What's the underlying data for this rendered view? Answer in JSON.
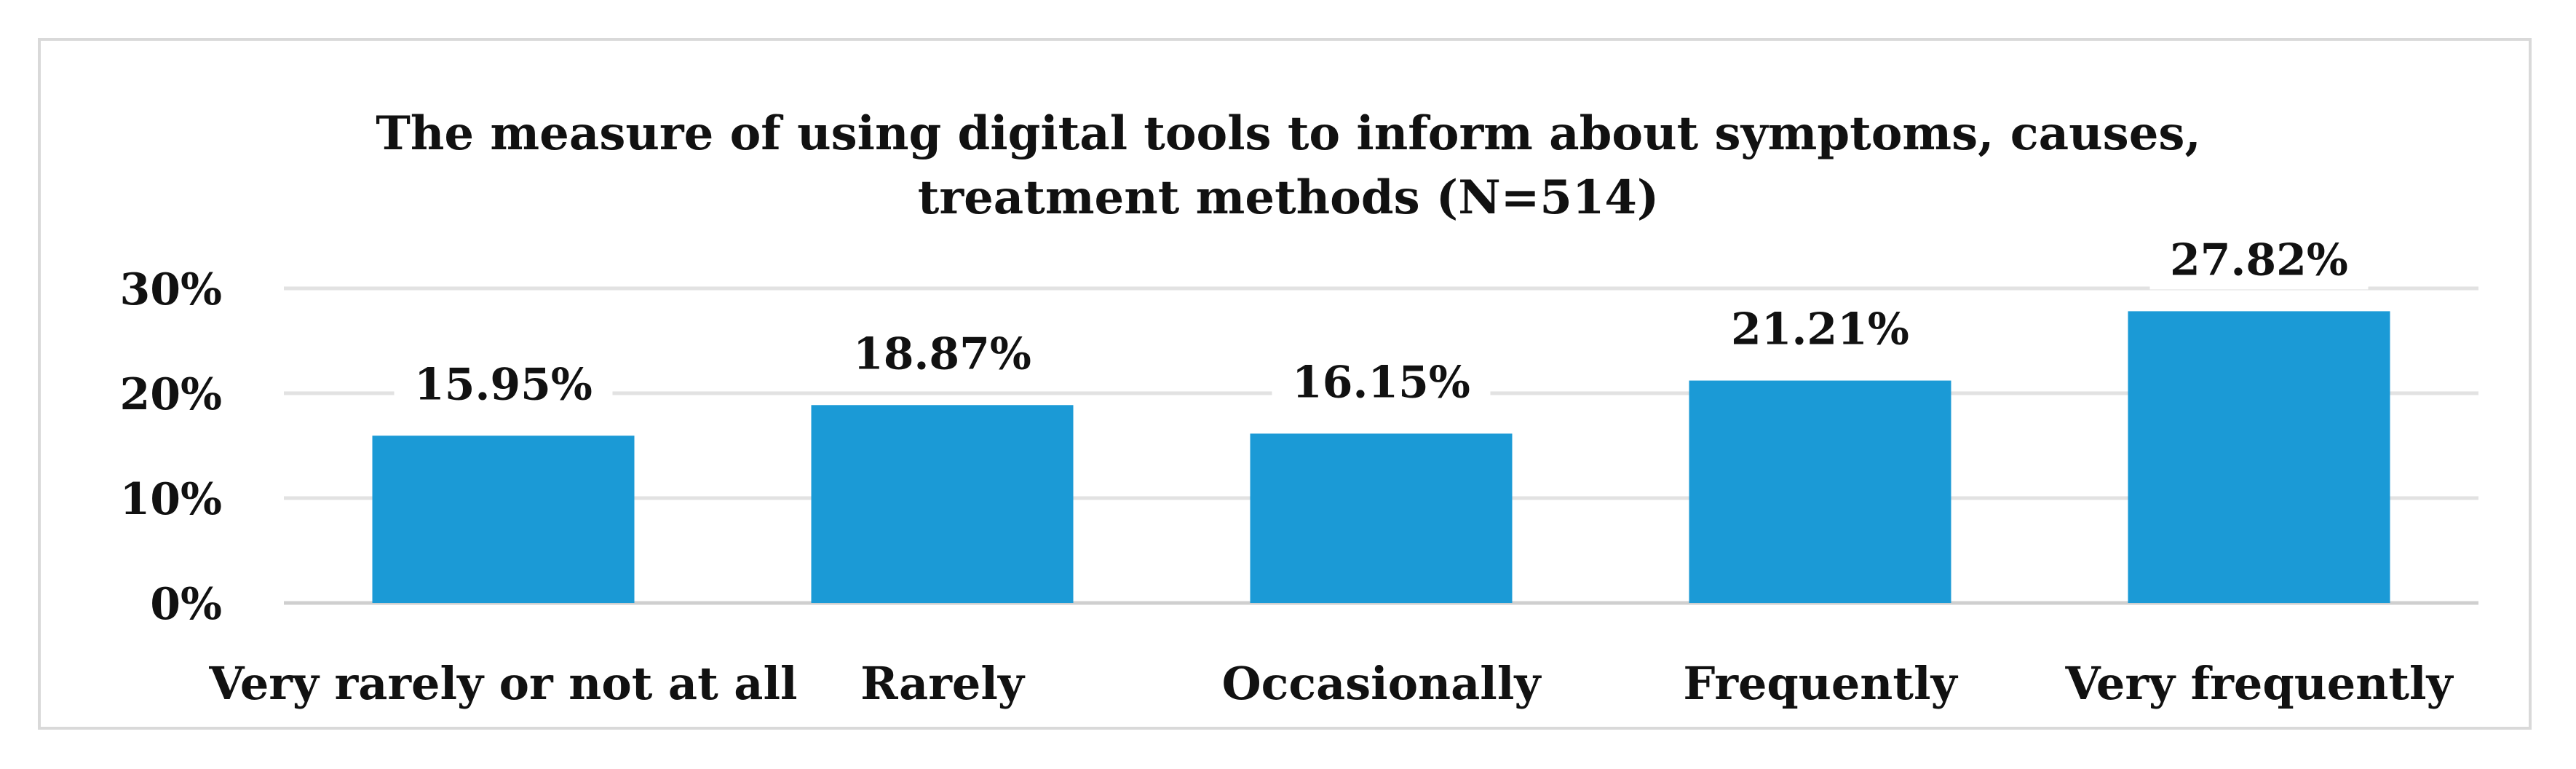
{
  "chart_data": {
    "type": "bar",
    "title": "The measure of using digital tools to inform about symptoms, causes, treatment methods (N=514)",
    "xlabel": "",
    "ylabel": "",
    "categories": [
      "Very rarely or not at all",
      "Rarely",
      "Occasionally",
      "Frequently",
      "Very frequently"
    ],
    "values": [
      15.95,
      18.87,
      16.15,
      21.21,
      27.82
    ],
    "value_labels": [
      "15.95%",
      "18.87%",
      "16.15%",
      "21.21%",
      "27.82%"
    ],
    "ylim": [
      0,
      30
    ],
    "yticks": [
      0,
      10,
      20,
      30
    ],
    "ytick_labels": [
      "0%",
      "10%",
      "20%",
      "30%"
    ],
    "grid": true,
    "legend": "none",
    "bar_color": "#1b9ad6"
  }
}
